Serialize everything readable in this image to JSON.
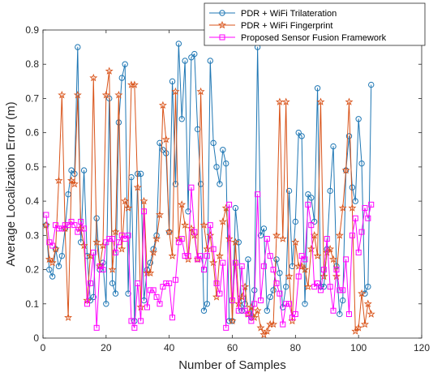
{
  "chart_data": {
    "type": "line",
    "xlabel": "Number of Samples",
    "ylabel": "Average Localization Error (m)",
    "xlim": [
      0,
      120
    ],
    "ylim": [
      0,
      0.9
    ],
    "xticks": [
      0,
      20,
      40,
      60,
      80,
      100,
      120
    ],
    "yticks": [
      0,
      0.1,
      0.2,
      0.3,
      0.4,
      0.5,
      0.6,
      0.7,
      0.8,
      0.9
    ],
    "grid": false,
    "legend_position": "top-right",
    "series": [
      {
        "name": "PDR + WiFi Trilateration",
        "color": "#1f77b4",
        "marker": "circle",
        "values": [
          0.33,
          0.2,
          0.18,
          0.26,
          0.21,
          0.24,
          0.32,
          0.42,
          0.49,
          0.48,
          0.85,
          0.28,
          0.49,
          0.24,
          0.11,
          0.12,
          0.35,
          0.2,
          0.22,
          0.1,
          0.7,
          0.16,
          0.13,
          0.63,
          0.76,
          0.8,
          0.13,
          0.47,
          0.05,
          0.48,
          0.48,
          0.11,
          0.2,
          0.22,
          0.26,
          0.3,
          0.57,
          0.55,
          0.54,
          0.31,
          0.75,
          0.45,
          0.86,
          0.64,
          0.81,
          0.37,
          0.82,
          0.83,
          0.61,
          0.45,
          0.08,
          0.1,
          0.81,
          0.57,
          0.5,
          0.45,
          0.55,
          0.51,
          0.05,
          0.05,
          0.38,
          0.28,
          0.08,
          0.1,
          0.23,
          0.06,
          0.14,
          0.85,
          0.3,
          0.32,
          0.08,
          0.12,
          0.14,
          0.23,
          0.19,
          0.09,
          0.15,
          0.43,
          0.21,
          0.34,
          0.6,
          0.59,
          0.1,
          0.42,
          0.41,
          0.34,
          0.73,
          0.15,
          0.15,
          0.26,
          0.43,
          0.56,
          0.21,
          0.07,
          0.11,
          0.49,
          0.59,
          0.44,
          0.4,
          0.64,
          0.51,
          0.13,
          0.15,
          0.74
        ]
      },
      {
        "name": "PDR + WiFi Fingerprint",
        "color": "#d95319",
        "marker": "star",
        "values": [
          0.33,
          0.23,
          0.22,
          0.26,
          0.46,
          0.71,
          0.32,
          0.06,
          0.46,
          0.45,
          0.71,
          0.32,
          0.27,
          0.11,
          0.24,
          0.76,
          0.28,
          0.21,
          0.27,
          0.71,
          0.78,
          0.2,
          0.31,
          0.71,
          0.26,
          0.4,
          0.38,
          0.74,
          0.74,
          0.44,
          0.09,
          0.4,
          0.19,
          0.19,
          0.25,
          0.29,
          0.36,
          0.68,
          0.58,
          0.31,
          0.24,
          0.72,
          0.29,
          0.39,
          0.33,
          0.23,
          0.32,
          0.3,
          0.23,
          0.72,
          0.33,
          0.26,
          0.3,
          0.22,
          0.12,
          0.24,
          0.34,
          0.38,
          0.29,
          0.05,
          0.28,
          0.1,
          0.12,
          0.15,
          0.07,
          0.09,
          0.06,
          0.08,
          0.03,
          0.01,
          0.02,
          0.04,
          0.04,
          0.3,
          0.69,
          0.29,
          0.69,
          0.18,
          0.05,
          0.28,
          0.21,
          0.21,
          0.2,
          0.15,
          0.26,
          0.3,
          0.24,
          0.69,
          0.18,
          0.25,
          0.26,
          0.23,
          0.18,
          0.3,
          0.38,
          0.49,
          0.69,
          0.38,
          0.02,
          0.03,
          0.13,
          0.04,
          0.1,
          0.07
        ]
      },
      {
        "name": "Proposed Sensor Fusion Framework",
        "color": "#ff00ff",
        "marker": "square",
        "values": [
          0.36,
          0.28,
          0.27,
          0.33,
          0.32,
          0.32,
          0.33,
          0.33,
          0.34,
          0.33,
          0.31,
          0.34,
          0.32,
          0.1,
          0.16,
          0.25,
          0.03,
          0.21,
          0.2,
          0.28,
          0.29,
          0.29,
          0.25,
          0.28,
          0.3,
          0.29,
          0.3,
          0.05,
          0.03,
          0.16,
          0.05,
          0.37,
          0.09,
          0.14,
          0.14,
          0.12,
          0.1,
          0.15,
          0.16,
          0.16,
          0.06,
          0.17,
          0.28,
          0.29,
          0.24,
          0.24,
          0.44,
          0.31,
          0.23,
          0.24,
          0.2,
          0.24,
          0.33,
          0.26,
          0.16,
          0.13,
          0.22,
          0.03,
          0.39,
          0.11,
          0.22,
          0.08,
          0.21,
          0.08,
          0.07,
          0.05,
          0.1,
          0.42,
          0.11,
          0.21,
          0.29,
          0.24,
          0.2,
          0.16,
          0.13,
          0.04,
          0.1,
          0.1,
          0.06,
          0.07,
          0.18,
          0.24,
          0.23,
          0.39,
          0.33,
          0.15,
          0.16,
          0.14,
          0.2,
          0.29,
          0.15,
          0.08,
          0.2,
          0.14,
          0.14,
          0.23,
          0.07,
          0.3,
          0.35,
          0.25,
          0.31,
          0.38,
          0.35,
          0.39
        ]
      }
    ]
  }
}
